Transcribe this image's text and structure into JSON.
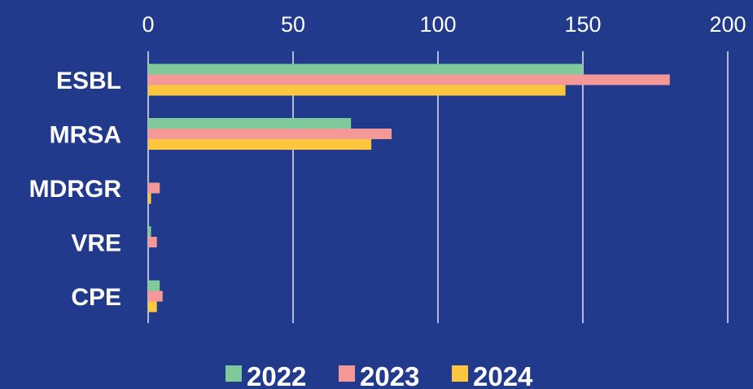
{
  "chart_data": {
    "type": "bar",
    "orientation": "horizontal",
    "categories": [
      "ESBL",
      "MRSA",
      "MDRGR",
      "VRE",
      "CPE"
    ],
    "series": [
      {
        "name": "2022",
        "values": [
          150,
          70,
          0,
          1,
          4
        ],
        "color": "#7FC99A"
      },
      {
        "name": "2023",
        "values": [
          180,
          84,
          4,
          3,
          5
        ],
        "color": "#F59898"
      },
      {
        "name": "2024",
        "values": [
          144,
          77,
          1,
          0,
          3
        ],
        "color": "#FCC73F"
      }
    ],
    "xlim": [
      0,
      200
    ],
    "x_ticks": [
      "0",
      "50",
      "100",
      "150",
      "200"
    ],
    "title": "",
    "xlabel": "",
    "ylabel": "",
    "grid": "vertical",
    "legend_position": "bottom",
    "background_color": "#223A8C",
    "text_color": "#FFFFFF",
    "grid_color": "#FFFFFF"
  }
}
